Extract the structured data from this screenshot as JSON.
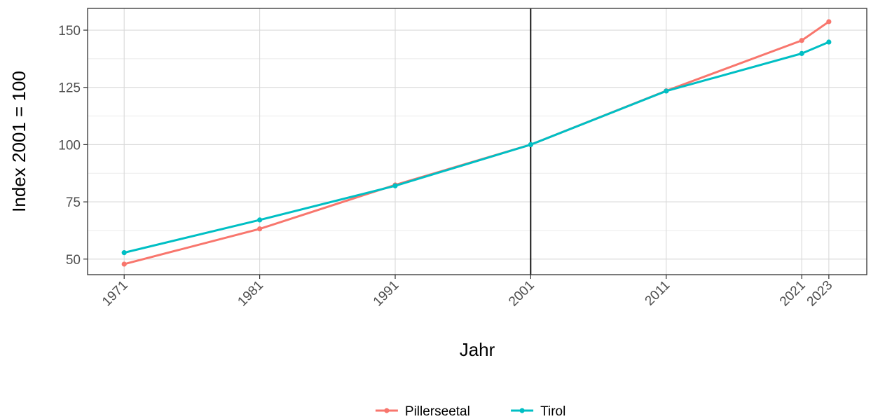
{
  "chart_data": {
    "type": "line",
    "title": "",
    "xlabel": "Jahr",
    "ylabel": "Index 2001 = 100",
    "x": [
      1971,
      1981,
      1991,
      2001,
      2011,
      2021,
      2023
    ],
    "x_tick_labels": [
      "1971",
      "1981",
      "1991",
      "2001",
      "2011",
      "2021",
      "2023"
    ],
    "y_ticks": [
      50,
      75,
      100,
      125,
      150
    ],
    "y_tick_labels": [
      "50",
      "75",
      "100",
      "125",
      "150"
    ],
    "xlim": [
      1968.3,
      2025.8
    ],
    "ylim": [
      43.2,
      159.5
    ],
    "grid": true,
    "reference_line": {
      "x": 2001,
      "color": "#000000"
    },
    "legend_position": "bottom",
    "series": [
      {
        "name": "Pillerseetal",
        "color": "#F8766D",
        "values": [
          47.8,
          63.2,
          82.4,
          100,
          123.5,
          145.5,
          153.7
        ]
      },
      {
        "name": "Tirol",
        "color": "#00BFC4",
        "values": [
          52.8,
          67.1,
          82.0,
          100,
          123.4,
          139.8,
          144.8
        ]
      }
    ]
  }
}
